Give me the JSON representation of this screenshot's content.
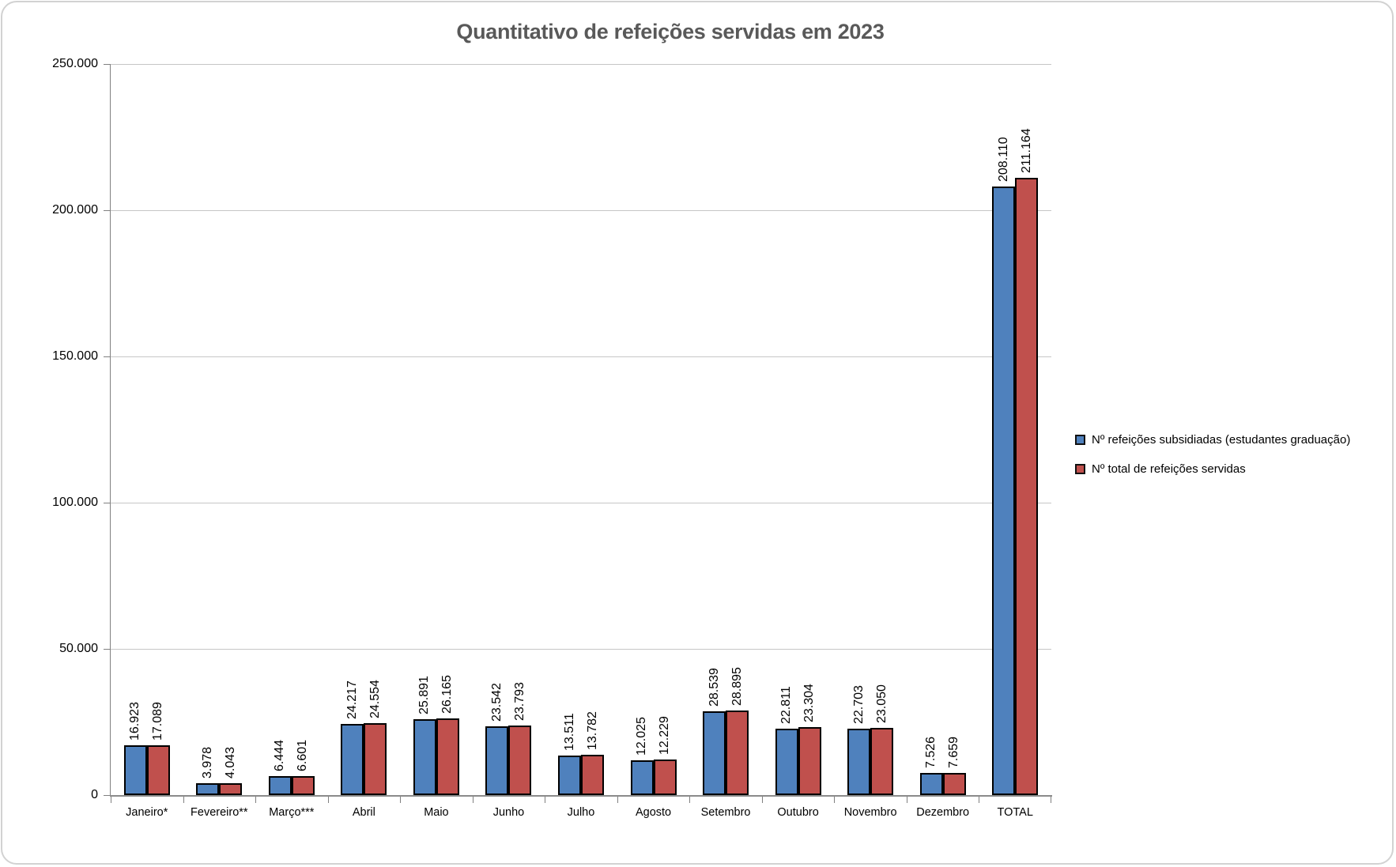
{
  "chart_data": {
    "type": "bar",
    "title": "Quantitativo de refeições servidas em 2023",
    "categories": [
      "Janeiro*",
      "Fevereiro**",
      "Março***",
      "Abril",
      "Maio",
      "Junho",
      "Julho",
      "Agosto",
      "Setembro",
      "Outubro",
      "Novembro",
      "Dezembro",
      "TOTAL"
    ],
    "series": [
      {
        "name": "Nº refeições subsidiadas (estudantes graduação)",
        "color": "#4F81BD",
        "values": [
          16923,
          3978,
          6444,
          24217,
          25891,
          23542,
          13511,
          12025,
          28539,
          22811,
          22703,
          7526,
          208110
        ]
      },
      {
        "name": "Nº total de refeições servidas",
        "color": "#C0504D",
        "values": [
          17089,
          4043,
          6601,
          24554,
          26165,
          23793,
          13782,
          12229,
          28895,
          23304,
          23050,
          7659,
          211164
        ]
      }
    ],
    "xlabel": "",
    "ylabel": "",
    "ylim": [
      0,
      250000
    ],
    "ytick_step": 50000,
    "ytick_labels": [
      "0",
      "50.000",
      "100.000",
      "150.000",
      "200.000",
      "250.000"
    ],
    "grid": true,
    "legend_position": "right-middle",
    "data_label_rotation": -90,
    "number_format": "thousands-dot"
  },
  "styles": {
    "title_color": "#595959",
    "bar_border_color": "#000000",
    "gridline_color": "#C6C6C6",
    "axis_color": "#808080",
    "frame_border_color": "#D2D2D2",
    "background": "#FFFFFF"
  }
}
